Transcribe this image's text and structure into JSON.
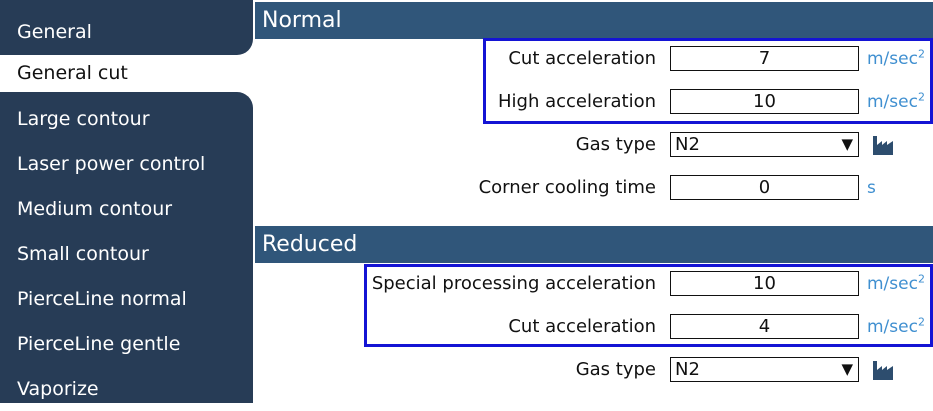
{
  "sidebar": {
    "items": [
      {
        "label": "General"
      },
      {
        "label": "General cut"
      },
      {
        "label": "Large contour"
      },
      {
        "label": "Laser power control"
      },
      {
        "label": "Medium contour"
      },
      {
        "label": "Small contour"
      },
      {
        "label": "PierceLine normal"
      },
      {
        "label": "PierceLine gentle"
      },
      {
        "label": "Vaporize"
      }
    ],
    "active_item": "General cut"
  },
  "sections": {
    "normal": {
      "title": "Normal",
      "cut_acceleration": {
        "label": "Cut acceleration",
        "value": "7",
        "unit": "m/sec",
        "unit_exp": "2"
      },
      "high_acceleration": {
        "label": "High acceleration",
        "value": "10",
        "unit": "m/sec",
        "unit_exp": "2"
      },
      "gas_type": {
        "label": "Gas type",
        "value": "N2",
        "icon": "factory-icon"
      },
      "corner_cooling_time": {
        "label": "Corner cooling time",
        "value": "0",
        "unit": "s"
      }
    },
    "reduced": {
      "title": "Reduced",
      "special_processing_acceleration": {
        "label": "Special processing acceleration",
        "value": "10",
        "unit": "m/sec",
        "unit_exp": "2"
      },
      "cut_acceleration": {
        "label": "Cut acceleration",
        "value": "4",
        "unit": "m/sec",
        "unit_exp": "2"
      },
      "gas_type": {
        "label": "Gas type",
        "value": "N2",
        "icon": "factory-icon"
      }
    }
  },
  "colors": {
    "sidebar_bg": "#273c56",
    "header_bg": "#30567a",
    "unit_text": "#3f8fd0",
    "highlight": "#1414d4"
  }
}
